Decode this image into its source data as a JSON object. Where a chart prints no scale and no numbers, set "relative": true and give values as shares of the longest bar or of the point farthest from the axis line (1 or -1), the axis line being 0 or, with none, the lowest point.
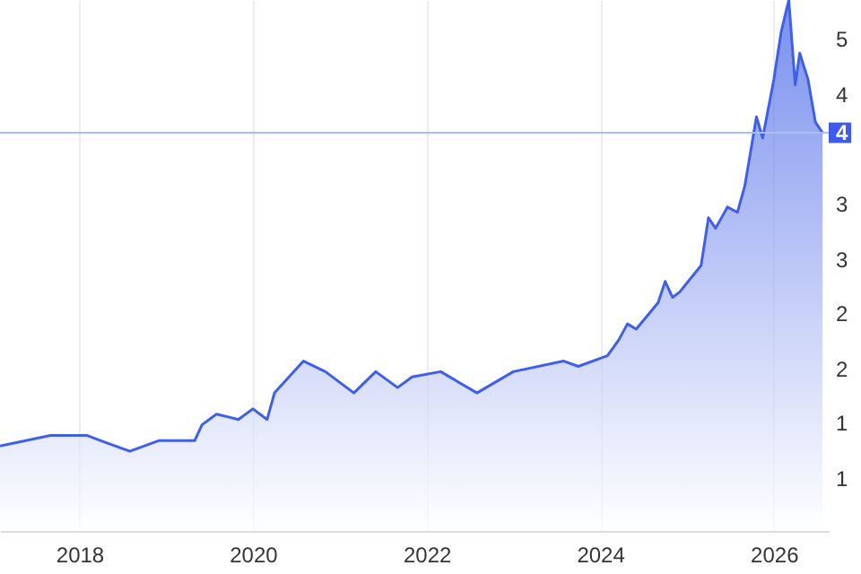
{
  "chart_data": {
    "type": "area",
    "relative": true,
    "x": [
      "2017-02",
      "2017-09",
      "2018-02",
      "2018-04",
      "2018-08",
      "2018-12",
      "2019-05",
      "2019-06",
      "2019-08",
      "2019-11",
      "2020-01",
      "2020-03",
      "2020-04",
      "2020-08",
      "2020-11",
      "2021-03",
      "2021-06",
      "2021-09",
      "2021-11",
      "2022-03",
      "2022-08",
      "2023-01",
      "2023-08",
      "2023-10",
      "2024-02",
      "2024-03-20",
      "2024-04-25",
      "2024-06",
      "2024-09",
      "2024-10",
      "2024-11",
      "2024-12",
      "2025-03",
      "2025-04",
      "2025-05",
      "2025-06-20",
      "2025-08",
      "2025-09",
      "2025-10-20",
      "2025-11-15",
      "2026-01",
      "2026-02",
      "2026-03-05",
      "2026-04",
      "2026-04-20",
      "2026-05-25",
      "2026-06-25",
      "2026-07-25"
    ],
    "series": [
      {
        "color": "#3f5fe6",
        "values": [
          0.16,
          0.18,
          0.18,
          0.17,
          0.15,
          0.17,
          0.17,
          0.2,
          0.22,
          0.21,
          0.23,
          0.21,
          0.26,
          0.32,
          0.3,
          0.26,
          0.3,
          0.27,
          0.29,
          0.3,
          0.26,
          0.3,
          0.32,
          0.31,
          0.33,
          0.36,
          0.39,
          0.38,
          0.43,
          0.47,
          0.44,
          0.45,
          0.5,
          0.59,
          0.57,
          0.61,
          0.6,
          0.65,
          0.78,
          0.74,
          0.85,
          0.94,
          1,
          0.84,
          0.9,
          0.85,
          0.77,
          0.75
        ]
      }
    ],
    "xlim": [
      "2017-02",
      "2026-08-20"
    ],
    "xticks": [
      "2018",
      "2020",
      "2022",
      "2024",
      "2026"
    ],
    "ref_lines": [
      {
        "axis": "y",
        "value": 0.75,
        "color": "#aebcf5"
      }
    ],
    "annotations": [
      "5",
      "4",
      {
        "text": "4",
        "y": 0.75
      },
      "3",
      "3",
      "2",
      "2",
      "1",
      "1"
    ],
    "grid": "x"
  }
}
